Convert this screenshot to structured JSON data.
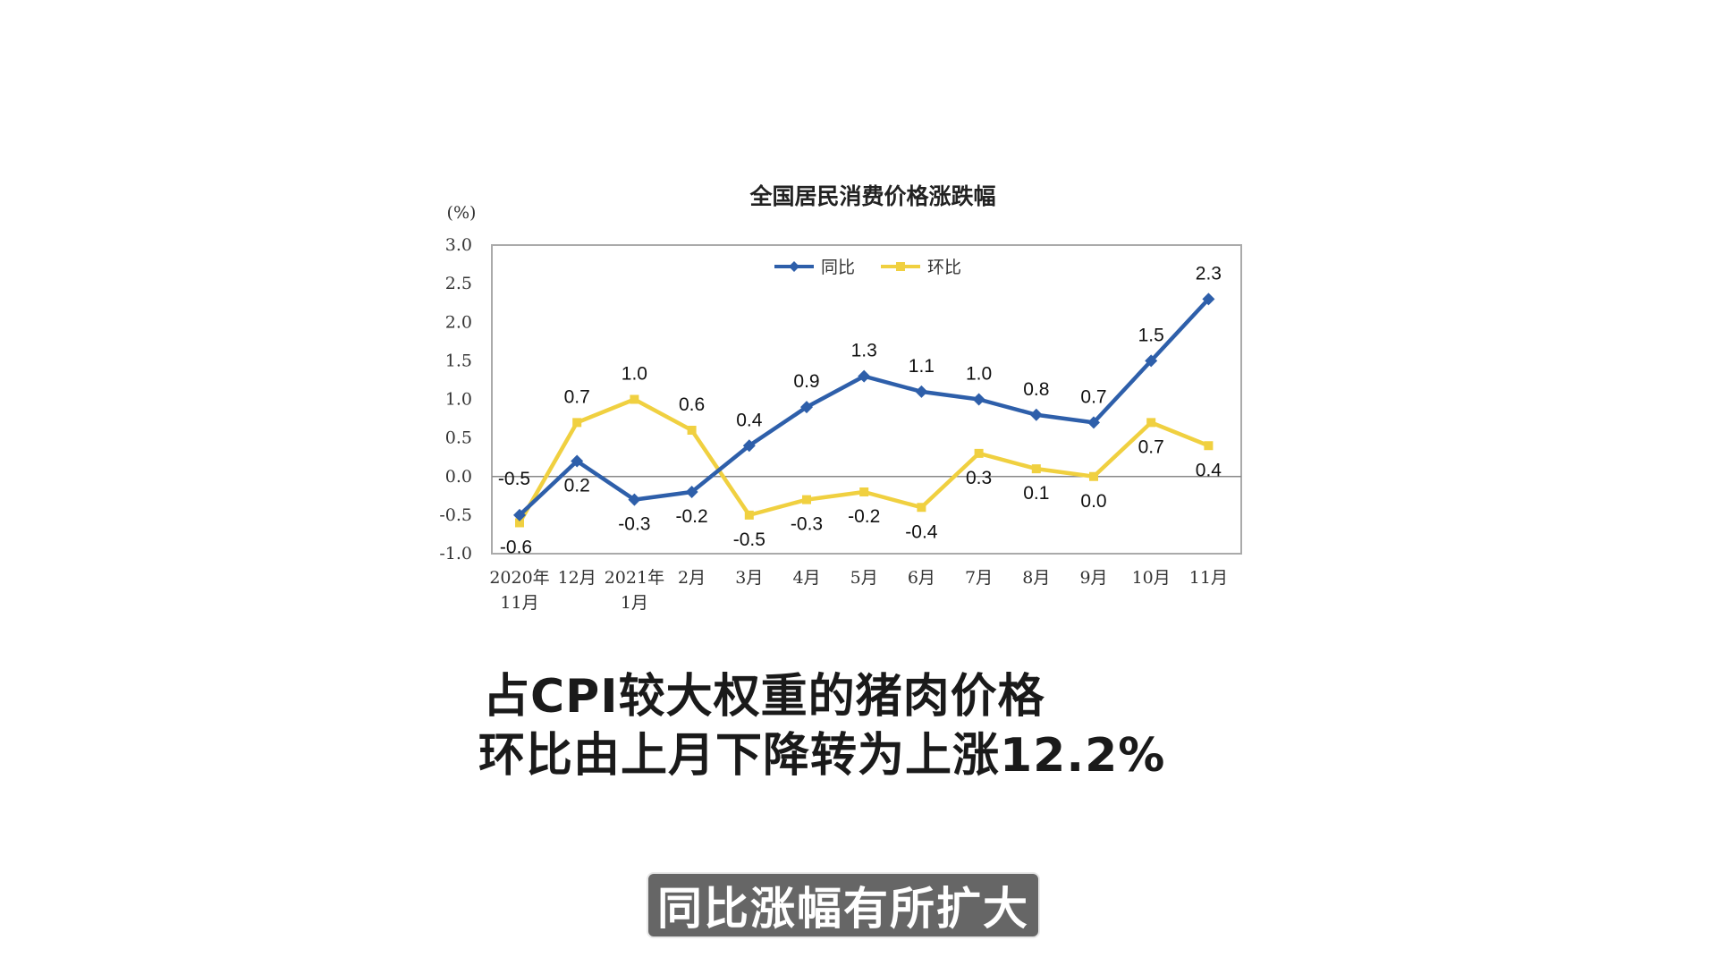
{
  "chart_data": {
    "type": "line",
    "title": "全国居民消费价格涨跌幅",
    "ylabel": "(%)",
    "ylim": [
      -1.0,
      3.0
    ],
    "yticks": [
      "3.0",
      "2.5",
      "2.0",
      "1.5",
      "1.0",
      "0.5",
      "0.0",
      "-0.5",
      "-1.0"
    ],
    "categories": [
      [
        "2020年",
        "11月"
      ],
      [
        "12月"
      ],
      [
        "2021年",
        "1月"
      ],
      [
        "2月"
      ],
      [
        "3月"
      ],
      [
        "4月"
      ],
      [
        "5月"
      ],
      [
        "6月"
      ],
      [
        "7月"
      ],
      [
        "8月"
      ],
      [
        "9月"
      ],
      [
        "10月"
      ],
      [
        "11月"
      ]
    ],
    "legend_position": "top-center",
    "grid": false,
    "series": [
      {
        "name": "同比",
        "color": "#2e5faa",
        "marker": "diamond",
        "values": [
          -0.5,
          0.2,
          -0.3,
          -0.2,
          0.4,
          0.9,
          1.3,
          1.1,
          1.0,
          0.8,
          0.7,
          1.5,
          2.3
        ],
        "labels": [
          "-0.5",
          "0.2",
          "-0.3",
          "-0.2",
          "0.4",
          "0.9",
          "1.3",
          "1.1",
          "1.0",
          "0.8",
          "0.7",
          "1.5",
          "2.3"
        ]
      },
      {
        "name": "环比",
        "color": "#f0d040",
        "marker": "square",
        "values": [
          -0.6,
          0.7,
          1.0,
          0.6,
          -0.5,
          -0.3,
          -0.2,
          -0.4,
          0.3,
          0.1,
          0.0,
          0.7,
          0.4
        ],
        "labels": [
          "-0.6",
          "0.7",
          "1.0",
          "0.6",
          "-0.5",
          "-0.3",
          "-0.2",
          "-0.4",
          "0.3",
          "0.1",
          "0.0",
          "0.7",
          "0.4"
        ]
      }
    ]
  },
  "caption": {
    "line1": "占CPI较大权重的猪肉价格",
    "line2": "环比由上月下降转为上涨12.2%"
  },
  "subtitle": "同比涨幅有所扩大"
}
